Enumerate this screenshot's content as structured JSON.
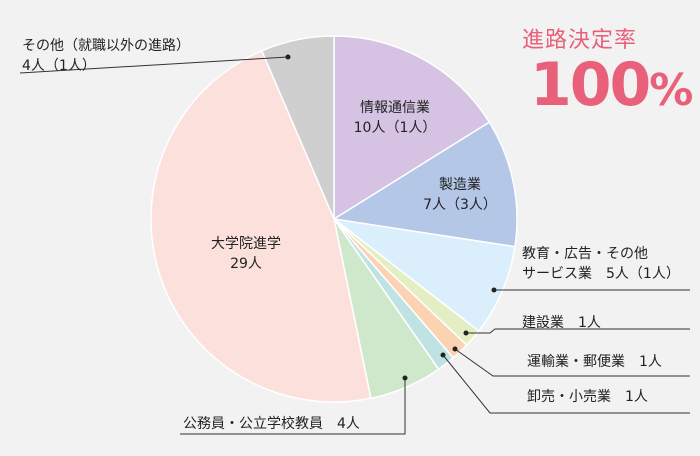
{
  "rate": {
    "label": "進路決定率",
    "value": "100",
    "unit": "%"
  },
  "chart_data": {
    "type": "pie",
    "title": "",
    "slices": [
      {
        "name": "情報通信業",
        "value": 10,
        "note": "1人",
        "label_lines": [
          "情報通信業",
          "10人（1人）"
        ],
        "color": "#d6c3e3"
      },
      {
        "name": "製造業",
        "value": 7,
        "note": "3人",
        "label_lines": [
          "製造業",
          "7人（3人）"
        ],
        "color": "#b4c7e7"
      },
      {
        "name": "教育・広告・その他サービス業",
        "value": 5,
        "note": "1人",
        "label_lines": [
          "教育・広告・その他",
          "サービス業　5人（1人）"
        ],
        "color": "#dbeefb"
      },
      {
        "name": "建設業",
        "value": 1,
        "label_lines": [
          "建設業　1人"
        ],
        "color": "#e3efc3"
      },
      {
        "name": "運輸業・郵便業",
        "value": 1,
        "label_lines": [
          "運輸業・郵便業　1人"
        ],
        "color": "#fbd3b3"
      },
      {
        "name": "卸売・小売業",
        "value": 1,
        "label_lines": [
          "卸売・小売業　1人"
        ],
        "color": "#bfe3e3"
      },
      {
        "name": "公務員・公立学校教員",
        "value": 4,
        "label_lines": [
          "公務員・公立学校教員　4人"
        ],
        "color": "#cfe8cc"
      },
      {
        "name": "大学院進学",
        "value": 29,
        "label_lines": [
          "大学院進学",
          "29人"
        ],
        "color": "#fbe0dc"
      },
      {
        "name": "その他（就職以外の進路）",
        "value": 4,
        "note": "1人",
        "label_lines": [
          "その他（就職以外の進路）",
          "4人（1人）"
        ],
        "color": "#cfcfcf"
      }
    ]
  }
}
